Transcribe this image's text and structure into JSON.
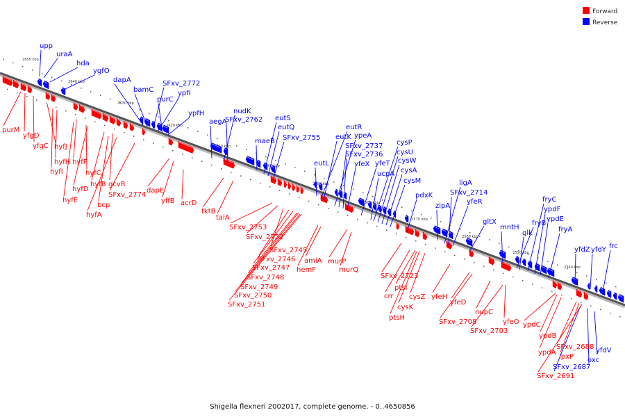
{
  "caption": "Shigella flexneri 2002017, complete genome. - 0..4650856",
  "legend": [
    {
      "label": "Forward",
      "color": "#ff0000"
    },
    {
      "label": "Reverse",
      "color": "#0000ff"
    }
  ],
  "colors": {
    "forward": "#ff0000",
    "reverse": "#0000ff",
    "backbone": "#555555"
  },
  "ticks": [
    "2650 kbp",
    "2640 kbp",
    "2630 kbp",
    "2620 kbp",
    "2610 kbp",
    "2600 kbp",
    "2590 kbp",
    "2580 kbp",
    "2570 kbp",
    "2560 kbp",
    "2550 kbp",
    "2540 kbp"
  ],
  "genes": {
    "reverse": [
      "upp",
      "uraA",
      "hda",
      "ygfO",
      "dapA",
      "bamC",
      "SFxv_2772",
      "ypfI",
      "purC",
      "ypfH",
      "aegA",
      "nudK",
      "SFxv_2762",
      "maeB",
      "eutS",
      "eutQ",
      "SFxv_2755",
      "eutL",
      "eutR",
      "eutK",
      "ypeA",
      "SFxv_2737",
      "SFxv_2736",
      "yfeX",
      "yfeT",
      "ucpA",
      "cysP",
      "cysU",
      "cysW",
      "cysA",
      "cysM",
      "pdxK",
      "zipA",
      "ligA",
      "SFxv_2714",
      "yfeR",
      "gltX",
      "mntH",
      "fryB",
      "glk",
      "fryC",
      "ypdF",
      "ypdE",
      "fryA",
      "yfdZ",
      "yfdY",
      "frc",
      "yfdV",
      "oxc",
      "SFxv_2687"
    ],
    "forward": [
      "purM",
      "yfgD",
      "yfgC",
      "hyfJ",
      "hyfH",
      "hyfI",
      "hyfF",
      "hyfC",
      "hyfD",
      "hyfB",
      "gcvR",
      "hyfE",
      "bcp",
      "hyfA",
      "SFxv_2774",
      "dapE",
      "yffB",
      "acrD",
      "tktB",
      "talA",
      "SFxv_2753",
      "SFxv_2752",
      "SFxv_2745",
      "SFxv_2746",
      "SFxv_2747",
      "SFxv_2748",
      "SFxv_2749",
      "SFxv_2750",
      "SFxv_2751",
      "amiA",
      "hemF",
      "murP",
      "murQ",
      "SFxv_2723",
      "crr",
      "ptsI",
      "cysK",
      "ptsH",
      "cysZ",
      "yfeH",
      "yfeD",
      "SFxv_2708",
      "nupC",
      "SFxv_2703",
      "yfeO",
      "ypdC",
      "ypdB",
      "ypdA",
      "SFxv_2688",
      "lpxP",
      "SFxv_2691"
    ]
  }
}
